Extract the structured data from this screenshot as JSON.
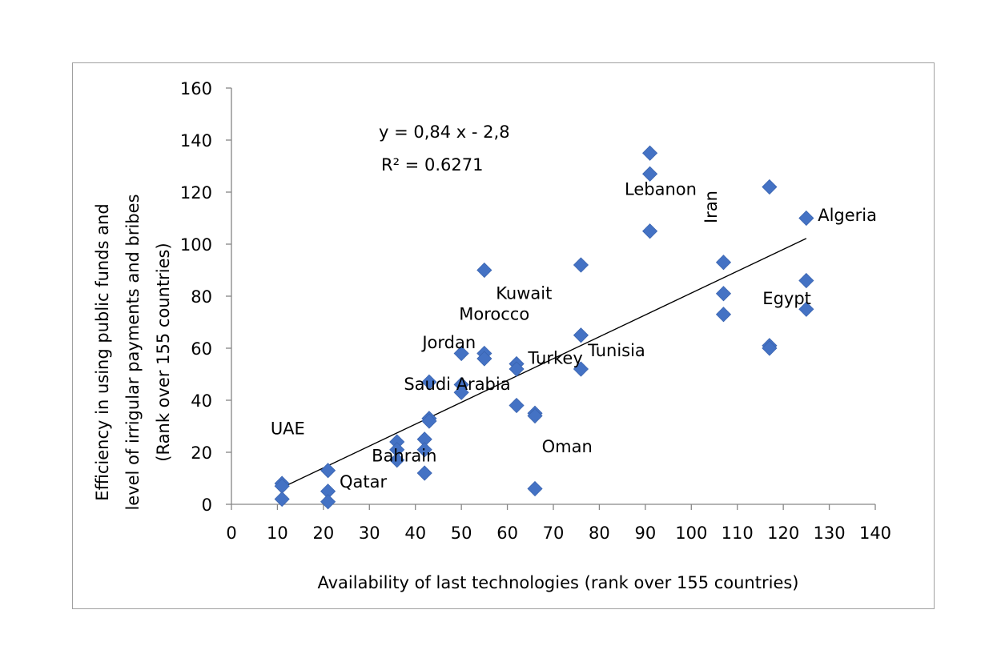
{
  "chart_data": {
    "type": "scatter",
    "xlabel": "Availability of last technologies (rank over 155 countries)",
    "ylabel_lines": [
      "Efficiency in using public funds and",
      "level of irrigular payments and bribes",
      "(Rank over 155 countries)"
    ],
    "xlim": [
      0,
      140
    ],
    "ylim": [
      0,
      160
    ],
    "xticks": [
      "0",
      "10",
      "20",
      "30",
      "40",
      "50",
      "60",
      "70",
      "80",
      "90",
      "100",
      "110",
      "120",
      "130",
      "140"
    ],
    "yticks": [
      "0",
      "20",
      "40",
      "60",
      "80",
      "100",
      "120",
      "140",
      "160"
    ],
    "marker_color": "#4472C4",
    "points": [
      {
        "x": 11,
        "y": 8
      },
      {
        "x": 11,
        "y": 7
      },
      {
        "x": 11,
        "y": 2
      },
      {
        "x": 21,
        "y": 13
      },
      {
        "x": 21,
        "y": 5
      },
      {
        "x": 21,
        "y": 1
      },
      {
        "x": 36,
        "y": 24
      },
      {
        "x": 36,
        "y": 21
      },
      {
        "x": 36,
        "y": 17
      },
      {
        "x": 42,
        "y": 25
      },
      {
        "x": 42,
        "y": 21
      },
      {
        "x": 42,
        "y": 12
      },
      {
        "x": 43,
        "y": 47
      },
      {
        "x": 43,
        "y": 33
      },
      {
        "x": 43,
        "y": 32
      },
      {
        "x": 50,
        "y": 58
      },
      {
        "x": 50,
        "y": 46
      },
      {
        "x": 50,
        "y": 43
      },
      {
        "x": 55,
        "y": 90
      },
      {
        "x": 55,
        "y": 58
      },
      {
        "x": 55,
        "y": 56
      },
      {
        "x": 62,
        "y": 54
      },
      {
        "x": 62,
        "y": 52
      },
      {
        "x": 62,
        "y": 38
      },
      {
        "x": 66,
        "y": 35
      },
      {
        "x": 66,
        "y": 34
      },
      {
        "x": 66,
        "y": 6
      },
      {
        "x": 76,
        "y": 92
      },
      {
        "x": 76,
        "y": 65
      },
      {
        "x": 76,
        "y": 52
      },
      {
        "x": 91,
        "y": 135
      },
      {
        "x": 91,
        "y": 127
      },
      {
        "x": 91,
        "y": 105
      },
      {
        "x": 107,
        "y": 93
      },
      {
        "x": 107,
        "y": 81
      },
      {
        "x": 107,
        "y": 73
      },
      {
        "x": 117,
        "y": 122
      },
      {
        "x": 117,
        "y": 61
      },
      {
        "x": 117,
        "y": 60
      },
      {
        "x": 125,
        "y": 110
      },
      {
        "x": 125,
        "y": 86
      },
      {
        "x": 125,
        "y": 75
      }
    ],
    "trendline": {
      "slope": 0.84,
      "intercept": -2.8,
      "x_start": 11,
      "x_end": 125
    },
    "equation_text": "y = 0,84 x - 2,8",
    "r2_text": "R² = 0.6271",
    "annotations": [
      {
        "text": "UAE",
        "x": 8.5,
        "y": 27
      },
      {
        "text": "Qatar",
        "x": 23.5,
        "y": 6.5
      },
      {
        "text": "Bahrain",
        "x": 30.5,
        "y": 16.5
      },
      {
        "text": "Saudi Arabia",
        "x": 37.5,
        "y": 44
      },
      {
        "text": "Jordan",
        "x": 41.5,
        "y": 60
      },
      {
        "text": "Morocco",
        "x": 49.5,
        "y": 71
      },
      {
        "text": "Kuwait",
        "x": 57.5,
        "y": 79
      },
      {
        "text": "Turkey",
        "x": 64.5,
        "y": 54
      },
      {
        "text": "Tunisia",
        "x": 77.5,
        "y": 57
      },
      {
        "text": "Oman",
        "x": 67.5,
        "y": 20
      },
      {
        "text": "Lebanon",
        "x": 85.5,
        "y": 119
      },
      {
        "text": "Egypt",
        "x": 115.5,
        "y": 77
      },
      {
        "text": "Algeria",
        "x": 127.5,
        "y": 109
      },
      {
        "text": "Iran",
        "x": 105.5,
        "y": 108,
        "rotated": true
      }
    ]
  }
}
